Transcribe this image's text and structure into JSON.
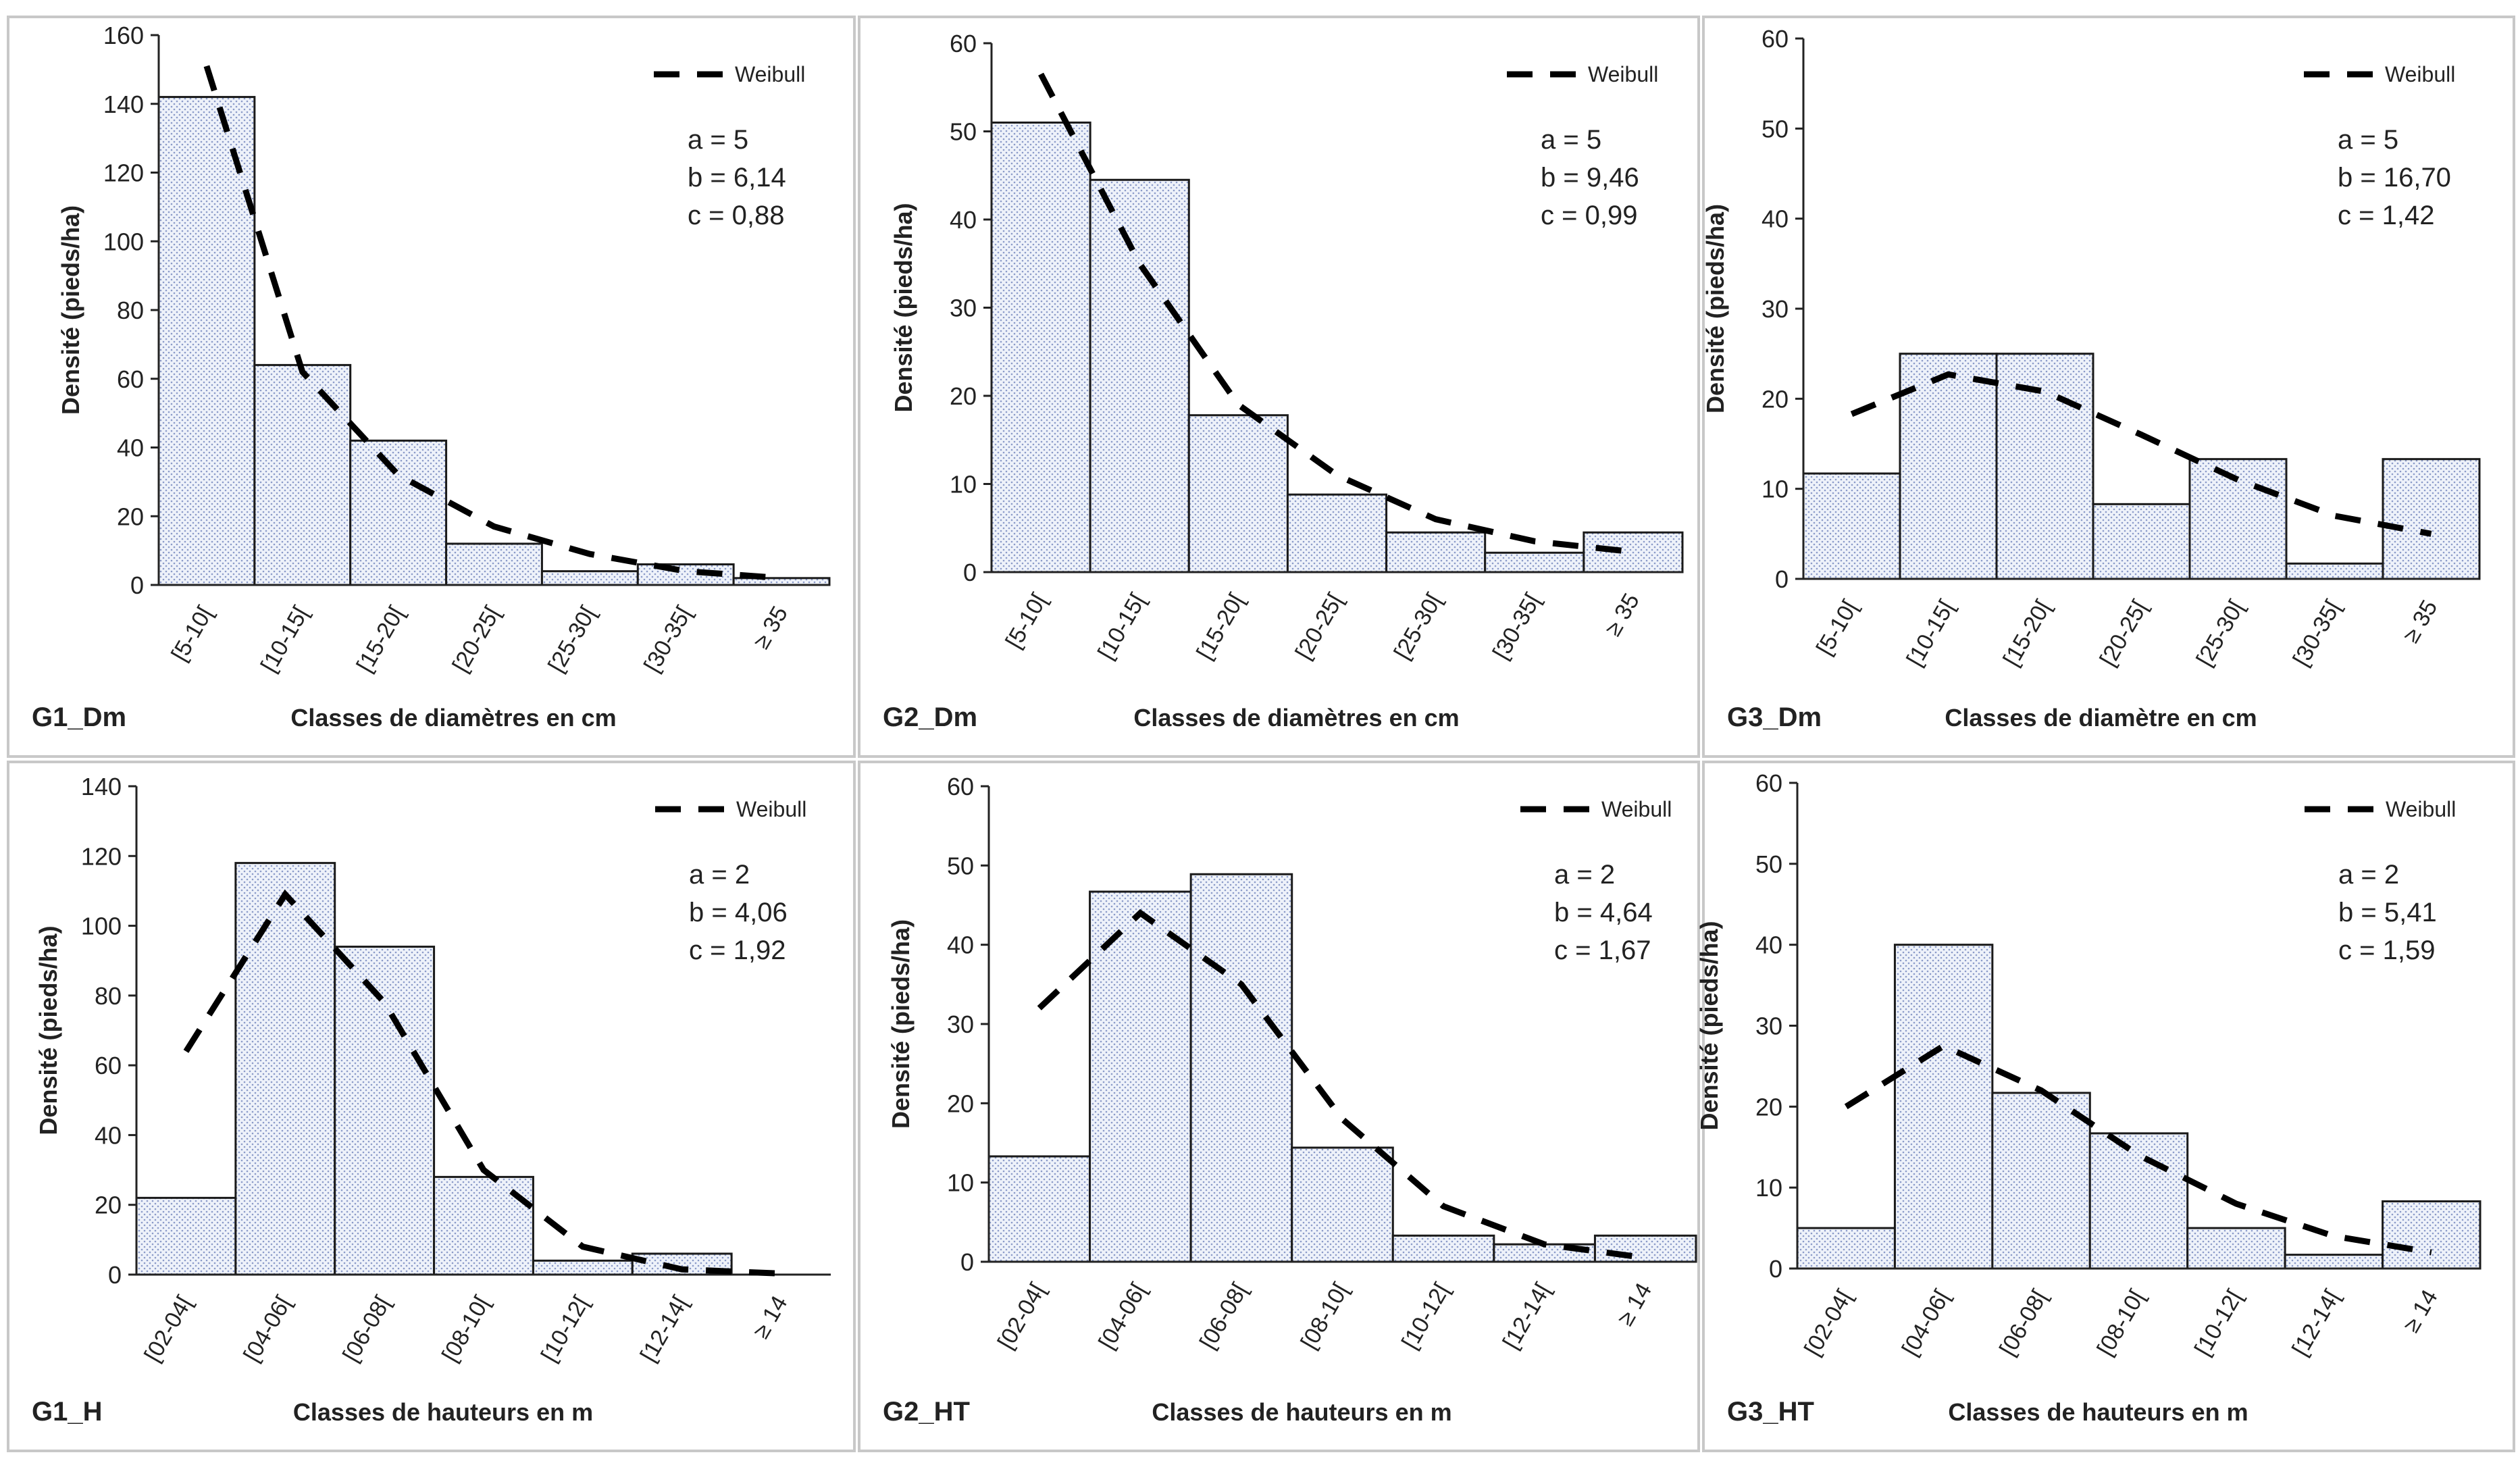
{
  "chart_data": [
    {
      "type": "bar",
      "panel_label": "G1_Dm",
      "xlabel": "Classes de diamètres en cm",
      "ylabel": "Densité (pieds/ha)",
      "categories": [
        "[5-10[",
        "[10-15[",
        "[15-20[",
        "[20-25[",
        "[25-30[",
        "[30-35[",
        "≥ 35"
      ],
      "ylim": [
        0,
        160
      ],
      "yticks": [
        0,
        20,
        40,
        60,
        80,
        100,
        120,
        140,
        160
      ],
      "values": [
        142,
        64,
        42,
        12,
        4,
        6,
        2
      ],
      "series": [
        {
          "name": "Weibull",
          "type": "line",
          "style": "dashed",
          "values": [
            151,
            62,
            32,
            17,
            9,
            4,
            2
          ]
        }
      ],
      "legend": "top-right",
      "params": [
        "a = 5",
        "b = 6,14",
        "c = 0,88"
      ],
      "grid": false
    },
    {
      "type": "bar",
      "panel_label": "G2_Dm",
      "xlabel": "Classes de diamètres en cm",
      "ylabel": "Densité (pieds/ha)",
      "categories": [
        "[5-10[",
        "[10-15[",
        "[15-20[",
        "[20-25[",
        "[25-30[",
        "[30-35[",
        "≥ 35"
      ],
      "ylim": [
        0,
        60
      ],
      "yticks": [
        0,
        10,
        20,
        30,
        40,
        50,
        60
      ],
      "values": [
        51,
        44.5,
        17.8,
        8.8,
        4.5,
        2.2,
        4.5
      ],
      "series": [
        {
          "name": "Weibull",
          "type": "line",
          "style": "dashed",
          "values": [
            56.5,
            35,
            19,
            11,
            6,
            3.5,
            2.3
          ]
        }
      ],
      "legend": "top-right",
      "params": [
        "a = 5",
        "b = 9,46",
        "c = 0,99"
      ],
      "grid": false
    },
    {
      "type": "bar",
      "panel_label": "G3_Dm",
      "xlabel": "Classes de diamètre en cm",
      "ylabel": "Densité (pieds/ha)",
      "categories": [
        "[5-10[",
        "[10-15[",
        "[15-20[",
        "[20-25[",
        "[25-30[",
        "[30-35[",
        "≥ 35"
      ],
      "ylim": [
        0,
        60
      ],
      "yticks": [
        0,
        10,
        20,
        30,
        40,
        50,
        60
      ],
      "values": [
        11.7,
        25,
        25,
        8.3,
        13.3,
        1.7,
        13.3
      ],
      "series": [
        {
          "name": "Weibull",
          "type": "line",
          "style": "dashed",
          "values": [
            18.3,
            22.7,
            20.8,
            16,
            11,
            7,
            5
          ]
        }
      ],
      "legend": "top-right",
      "params": [
        "a = 5",
        "b = 16,70",
        "c = 1,42"
      ],
      "grid": false
    },
    {
      "type": "bar",
      "panel_label": "G1_H",
      "xlabel": "Classes de hauteurs en m",
      "ylabel": "Densité (pieds/ha)",
      "categories": [
        "[02-04[",
        "[04-06[",
        "[06-08[",
        "[08-10[",
        "[10-12[",
        "[12-14[",
        "≥ 14"
      ],
      "ylim": [
        0,
        140
      ],
      "yticks": [
        0,
        20,
        40,
        60,
        80,
        100,
        120,
        140
      ],
      "values": [
        22,
        118,
        94,
        28,
        4,
        6,
        0
      ],
      "series": [
        {
          "name": "Weibull",
          "type": "line",
          "style": "dashed",
          "values": [
            64,
            109,
            78,
            30,
            8,
            1.5,
            0.3
          ]
        }
      ],
      "legend": "top-right",
      "params": [
        "a = 2",
        "b = 4,06",
        "c = 1,92"
      ],
      "grid": false
    },
    {
      "type": "bar",
      "panel_label": "G2_HT",
      "xlabel": "Classes de hauteurs en m",
      "ylabel": "Densité (pieds/ha)",
      "categories": [
        "[02-04[",
        "[04-06[",
        "[06-08[",
        "[08-10[",
        "[10-12[",
        "[12-14[",
        "≥ 14"
      ],
      "ylim": [
        0,
        60
      ],
      "yticks": [
        0,
        10,
        20,
        30,
        40,
        50,
        60
      ],
      "values": [
        13.3,
        46.7,
        48.9,
        14.4,
        3.3,
        2.2,
        3.3
      ],
      "series": [
        {
          "name": "Weibull",
          "type": "line",
          "style": "dashed",
          "values": [
            32,
            44,
            35,
            18,
            7,
            2.2,
            0.5
          ]
        }
      ],
      "legend": "top-right",
      "params": [
        "a = 2",
        "b = 4,64",
        "c = 1,67"
      ],
      "grid": false
    },
    {
      "type": "bar",
      "panel_label": "G3_HT",
      "xlabel": "Classes de hauteurs en m",
      "ylabel": "Densité (pieds/ha)",
      "categories": [
        "[02-04[",
        "[04-06[",
        "[06-08[",
        "[08-10[",
        "[10-12[",
        "[12-14[",
        "≥ 14"
      ],
      "ylim": [
        0,
        60
      ],
      "yticks": [
        0,
        10,
        20,
        30,
        40,
        50,
        60
      ],
      "values": [
        5,
        40,
        21.7,
        16.7,
        5,
        1.7,
        8.3
      ],
      "series": [
        {
          "name": "Weibull",
          "type": "line",
          "style": "dashed",
          "values": [
            20,
            27.5,
            22,
            14,
            8,
            4,
            2
          ]
        }
      ],
      "legend": "top-right",
      "params": [
        "a = 2",
        "b = 5,41",
        "c = 1,59"
      ],
      "grid": false
    }
  ],
  "colors": {
    "bar_fill": "#eef2fa",
    "bar_dots": "#8a9ac8",
    "bar_stroke": "#1a1a1a",
    "line": "#000000",
    "panel_border": "#c8c8c8"
  }
}
